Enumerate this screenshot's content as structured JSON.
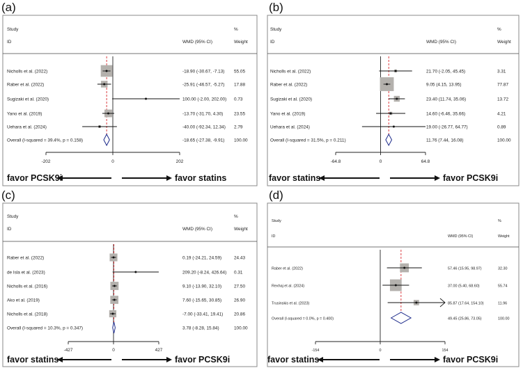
{
  "panels": [
    {
      "label": "(a)",
      "chart_data": {
        "type": "forest",
        "header": {
          "study": "Study",
          "id": "ID",
          "wmd": "WMD (95% CI)",
          "pct": "%",
          "weight": "Weight"
        },
        "null_line": 0,
        "overall_line": -18.65,
        "xlim": [
          -202,
          202
        ],
        "ticks": [
          -202,
          0,
          202
        ],
        "tick_labels": [
          "-202",
          "0",
          "202"
        ],
        "studies": [
          {
            "name": "Nicholls et al. (2022)",
            "est": -18.9,
            "lo": -30.67,
            "hi": -7.13,
            "weight": 55.05,
            "ci_text": "-18.90 (-30.67, -7.13)",
            "weight_text": "55.05"
          },
          {
            "name": "Raber et al. (2022)",
            "est": -25.91,
            "lo": -46.57,
            "hi": -5.27,
            "weight": 17.88,
            "ci_text": "-25.91 (-46.57, -5.27)",
            "weight_text": "17.88"
          },
          {
            "name": "Sugizaki et al. (2020)",
            "est": 100.0,
            "lo": -2.0,
            "hi": 202.0,
            "weight": 0.73,
            "ci_text": "100.00 (-2.00, 202.00)",
            "weight_text": "0.73"
          },
          {
            "name": "Yano et al. (2019)",
            "est": -13.7,
            "lo": -31.7,
            "hi": 4.3,
            "weight": 23.55,
            "ci_text": "-13.70 (-31.70, 4.30)",
            "weight_text": "23.55"
          },
          {
            "name": "Uehara et al. (2024)",
            "est": -40.0,
            "lo": -92.34,
            "hi": 12.34,
            "weight": 2.79,
            "ci_text": "-40.00 (-92.34, 12.34)",
            "weight_text": "2.79"
          }
        ],
        "overall": {
          "label": "Overall  (I-squared = 39.4%, p = 0.158)",
          "est": -18.65,
          "lo": -27.38,
          "hi": -9.91,
          "ci_text": "-18.65 (-27.38, -9.91)",
          "weight_text": "100.00"
        },
        "direction_left": "favor PCSK9i",
        "direction_right": "favor statins"
      }
    },
    {
      "label": "(b)",
      "chart_data": {
        "type": "forest",
        "header": {
          "study": "Study",
          "id": "ID",
          "wmd": "WMD (95% CI)",
          "pct": "%",
          "weight": "Weight"
        },
        "null_line": 0,
        "overall_line": 11.76,
        "xlim": [
          -64.8,
          64.8
        ],
        "ticks": [
          -64.8,
          0,
          64.8
        ],
        "tick_labels": [
          "-64.8",
          "0",
          "64.8"
        ],
        "studies": [
          {
            "name": "Nicholls et al. (2022)",
            "est": 21.7,
            "lo": -2.05,
            "hi": 45.45,
            "weight": 3.31,
            "ci_text": "21.70 (-2.05, 45.45)",
            "weight_text": "3.31"
          },
          {
            "name": "Raber et al. (2022)",
            "est": 9.05,
            "lo": 4.15,
            "hi": 13.95,
            "weight": 77.87,
            "ci_text": "9.05 (4.15, 13.95)",
            "weight_text": "77.87"
          },
          {
            "name": "Sugizaki et al. (2020)",
            "est": 23.4,
            "lo": 11.74,
            "hi": 35.06,
            "weight": 13.72,
            "ci_text": "23.40 (11.74, 35.06)",
            "weight_text": "13.72"
          },
          {
            "name": "Yano et al. (2019)",
            "est": 14.6,
            "lo": -6.46,
            "hi": 35.66,
            "weight": 4.21,
            "ci_text": "14.60 (-6.46, 35.66)",
            "weight_text": "4.21"
          },
          {
            "name": "Uehara et al. (2024)",
            "est": 19.0,
            "lo": -26.77,
            "hi": 64.77,
            "weight": 0.89,
            "ci_text": "19.00 (-26.77, 64.77)",
            "weight_text": "0.89"
          }
        ],
        "overall": {
          "label": "Overall  (I-squared = 31.5%, p = 0.211)",
          "est": 11.76,
          "lo": 7.44,
          "hi": 16.08,
          "ci_text": "11.76 (7.44, 16.08)",
          "weight_text": "100.00"
        },
        "direction_left": "favor statins",
        "direction_right": "favor PCSK9i"
      }
    },
    {
      "label": "(c)",
      "chart_data": {
        "type": "forest",
        "header": {
          "study": "Study",
          "id": "ID",
          "wmd": "WMD (95% CI)",
          "pct": "%",
          "weight": "Weight"
        },
        "null_line": 0,
        "overall_line": 3.78,
        "xlim": [
          -427,
          427
        ],
        "ticks": [
          -427,
          0,
          427
        ],
        "tick_labels": [
          "-427",
          "0",
          "427"
        ],
        "studies": [
          {
            "name": "Raber et al. (2022)",
            "est": 0.19,
            "lo": -24.21,
            "hi": 24.59,
            "weight": 24.43,
            "ci_text": "0.19 (-24.21, 24.59)",
            "weight_text": "24.43"
          },
          {
            "name": "de Isla et al. (2023)",
            "est": 209.2,
            "lo": -8.24,
            "hi": 426.64,
            "weight": 0.31,
            "ci_text": "209.20 (-8.24, 426.64)",
            "weight_text": "0.31"
          },
          {
            "name": "Nicholls et al. (2016)",
            "est": 9.1,
            "lo": -13.9,
            "hi": 32.1,
            "weight": 27.5,
            "ci_text": "9.10 (-13.90, 32.10)",
            "weight_text": "27.50"
          },
          {
            "name": "Ako et al. (2019)",
            "est": 7.6,
            "lo": -15.65,
            "hi": 30.85,
            "weight": 26.9,
            "ci_text": "7.60 (-15.65, 30.85)",
            "weight_text": "26.90"
          },
          {
            "name": "Nicholls et al. (2018)",
            "est": -7.0,
            "lo": -33.41,
            "hi": 19.41,
            "weight": 20.86,
            "ci_text": "-7.00 (-33.41, 19.41)",
            "weight_text": "20.86"
          }
        ],
        "overall": {
          "label": "Overall  (I-squared = 10.3%, p = 0.347)",
          "est": 3.78,
          "lo": -8.28,
          "hi": 15.84,
          "ci_text": "3.78 (-8.28, 15.84)",
          "weight_text": "100.00"
        },
        "direction_left": "favor statins",
        "direction_right": "favor PCSK9i"
      }
    },
    {
      "label": "(d)",
      "chart_data": {
        "type": "forest",
        "header": {
          "study": "Study",
          "id": "ID",
          "wmd": "WMD (95% CI)",
          "pct": "%",
          "weight": "Weight"
        },
        "null_line": 0,
        "overall_line": 49.45,
        "xlim": [
          -154,
          154
        ],
        "ticks": [
          -154,
          0,
          154
        ],
        "tick_labels": [
          "-154",
          "0",
          "154"
        ],
        "studies": [
          {
            "name": "Raber et al. (2022)",
            "est": 57.46,
            "lo": 15.95,
            "hi": 98.97,
            "weight": 32.3,
            "ci_text": "57.46 (15.95, 98.97)",
            "weight_text": "32.30"
          },
          {
            "name": "Rexhaj et al. (2024)",
            "est": 37.0,
            "lo": 5.4,
            "hi": 68.6,
            "weight": 55.74,
            "ci_text": "37.00 (5.40, 68.60)",
            "weight_text": "55.74"
          },
          {
            "name": "Trusinskis et al. (2023)",
            "est": 85.87,
            "lo": 17.64,
            "hi": 154.1,
            "weight": 11.96,
            "ci_text": "85.87 (17.64, 154.10)",
            "weight_text": "11.96"
          }
        ],
        "overall": {
          "label": "Overall  (I-squared = 0.0%, p = 0.400)",
          "est": 49.45,
          "lo": 25.86,
          "hi": 73.05,
          "ci_text": "49.45 (25.86, 73.05)",
          "weight_text": "100.00"
        },
        "direction_left": "favor statins",
        "direction_right": "favor PCSK9i"
      }
    }
  ]
}
